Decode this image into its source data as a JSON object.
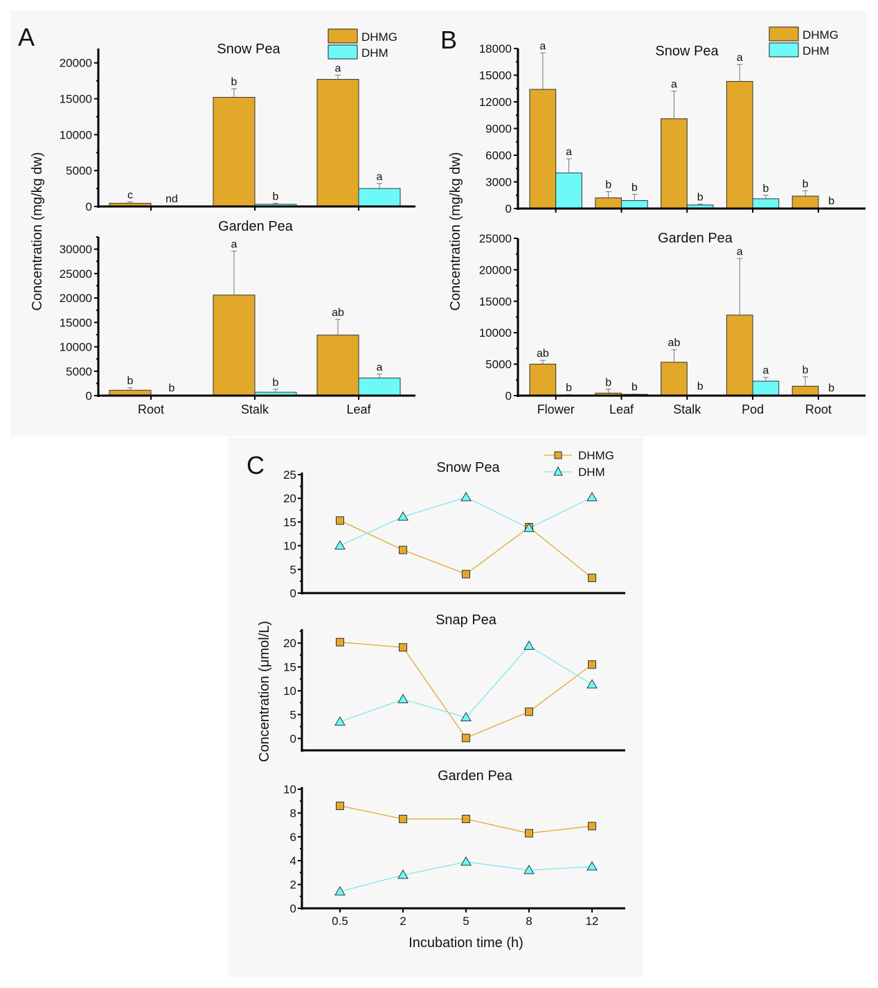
{
  "colors": {
    "dhmg": "#e2a82a",
    "dhm": "#6ef9f9",
    "axis": "#000000",
    "error": "#777777",
    "line_dhmg": "#e2a82a",
    "line_dhm": "#7ee8ee"
  },
  "legend": {
    "series": [
      "DHMG",
      "DHM"
    ]
  },
  "chart_data": [
    {
      "panel": "A",
      "type": "bar",
      "ylabel": "Concentration (mg/kg dw)",
      "legend_position": "top-right",
      "subplots": [
        {
          "title": "Snow Pea",
          "categories": [
            "Root",
            "Stalk",
            "Leaf"
          ],
          "ylim": [
            0,
            22000
          ],
          "yticks": [
            0,
            5000,
            10000,
            15000,
            20000
          ],
          "show_xticklabels": false,
          "series": [
            {
              "name": "DHMG",
              "values": [
                450,
                15200,
                17700
              ],
              "errors": [
                200,
                1200,
                600
              ],
              "letters": [
                "c",
                "b",
                "a"
              ]
            },
            {
              "name": "DHM",
              "values": [
                0,
                300,
                2500
              ],
              "errors": [
                0,
                150,
                700
              ],
              "letters": [
                "nd",
                "b",
                "a"
              ]
            }
          ]
        },
        {
          "title": "Garden Pea",
          "categories": [
            "Root",
            "Stalk",
            "Leaf"
          ],
          "ylim": [
            0,
            32500
          ],
          "yticks": [
            0,
            5000,
            10000,
            15000,
            20000,
            25000,
            30000
          ],
          "show_xticklabels": true,
          "series": [
            {
              "name": "DHMG",
              "values": [
                1100,
                20600,
                12400
              ],
              "errors": [
                500,
                9000,
                3200
              ],
              "letters": [
                "b",
                "a",
                "ab"
              ]
            },
            {
              "name": "DHM",
              "values": [
                0,
                700,
                3600
              ],
              "errors": [
                0,
                600,
                800
              ],
              "letters": [
                "b",
                "b",
                "a"
              ]
            }
          ]
        }
      ]
    },
    {
      "panel": "B",
      "type": "bar",
      "ylabel": "Concentration (mg/kg dw)",
      "legend_position": "top-right",
      "subplots": [
        {
          "title": "Snow Pea",
          "categories": [
            "Flower",
            "Leaf",
            "Stalk",
            "Pod",
            "Root"
          ],
          "ylim": [
            0,
            18000
          ],
          "yticks": [
            0,
            3000,
            6000,
            9000,
            12000,
            15000,
            18000
          ],
          "show_xticklabels": false,
          "series": [
            {
              "name": "DHMG",
              "values": [
                13400,
                1200,
                10100,
                14300,
                1400
              ],
              "errors": [
                4100,
                700,
                3100,
                1900,
                600
              ],
              "letters": [
                "a",
                "b",
                "a",
                "a",
                "b"
              ]
            },
            {
              "name": "DHM",
              "values": [
                4000,
                900,
                400,
                1100,
                0
              ],
              "errors": [
                1600,
                700,
                100,
                400,
                0
              ],
              "letters": [
                "a",
                "b",
                "b",
                "b",
                "b"
              ]
            }
          ]
        },
        {
          "title": "Garden Pea",
          "categories": [
            "Flower",
            "Leaf",
            "Stalk",
            "Pod",
            "Root"
          ],
          "ylim": [
            0,
            25000
          ],
          "yticks": [
            0,
            5000,
            10000,
            15000,
            20000,
            25000
          ],
          "show_xticklabels": true,
          "series": [
            {
              "name": "DHMG",
              "values": [
                5000,
                400,
                5300,
                12800,
                1500
              ],
              "errors": [
                600,
                600,
                2000,
                9000,
                1500
              ],
              "letters": [
                "ab",
                "b",
                "ab",
                "a",
                "b"
              ]
            },
            {
              "name": "DHM",
              "values": [
                100,
                200,
                50,
                2300,
                0
              ],
              "errors": [
                50,
                50,
                0,
                600,
                0
              ],
              "letters": [
                "b",
                "b",
                "b",
                "a",
                "b"
              ]
            }
          ]
        }
      ]
    },
    {
      "panel": "C",
      "type": "line",
      "xlabel": "Incubation time (h)",
      "ylabel": "Concentration (μmol/L)",
      "x": [
        "0.5",
        "2",
        "5",
        "8",
        "12"
      ],
      "legend_position": "top-right",
      "subplots": [
        {
          "title": "Snow Pea",
          "ylim": [
            0,
            25
          ],
          "yticks": [
            0,
            5,
            10,
            15,
            20,
            25
          ],
          "series": [
            {
              "name": "DHMG",
              "marker": "square",
              "values": [
                15.3,
                9.1,
                4.0,
                13.9,
                3.2
              ]
            },
            {
              "name": "DHM",
              "marker": "triangle",
              "values": [
                10.0,
                16.1,
                20.2,
                13.7,
                20.2
              ]
            }
          ]
        },
        {
          "title": "Snap Pea",
          "ylim": [
            -2.5,
            22.5
          ],
          "yticks": [
            0,
            5,
            10,
            15,
            20
          ],
          "series": [
            {
              "name": "DHMG",
              "marker": "square",
              "values": [
                20.2,
                19.1,
                0.1,
                5.6,
                15.5
              ]
            },
            {
              "name": "DHM",
              "marker": "triangle",
              "values": [
                3.5,
                8.2,
                4.4,
                19.4,
                11.3
              ]
            }
          ]
        },
        {
          "title": "Garden Pea",
          "ylim": [
            0,
            10
          ],
          "yticks": [
            0,
            2,
            4,
            6,
            8,
            10
          ],
          "series": [
            {
              "name": "DHMG",
              "marker": "square",
              "values": [
                8.6,
                7.5,
                7.5,
                6.3,
                6.9
              ]
            },
            {
              "name": "DHM",
              "marker": "triangle",
              "values": [
                1.4,
                2.8,
                3.9,
                3.2,
                3.5
              ]
            }
          ]
        }
      ]
    }
  ],
  "panel_labels": [
    "A",
    "B",
    "C"
  ]
}
